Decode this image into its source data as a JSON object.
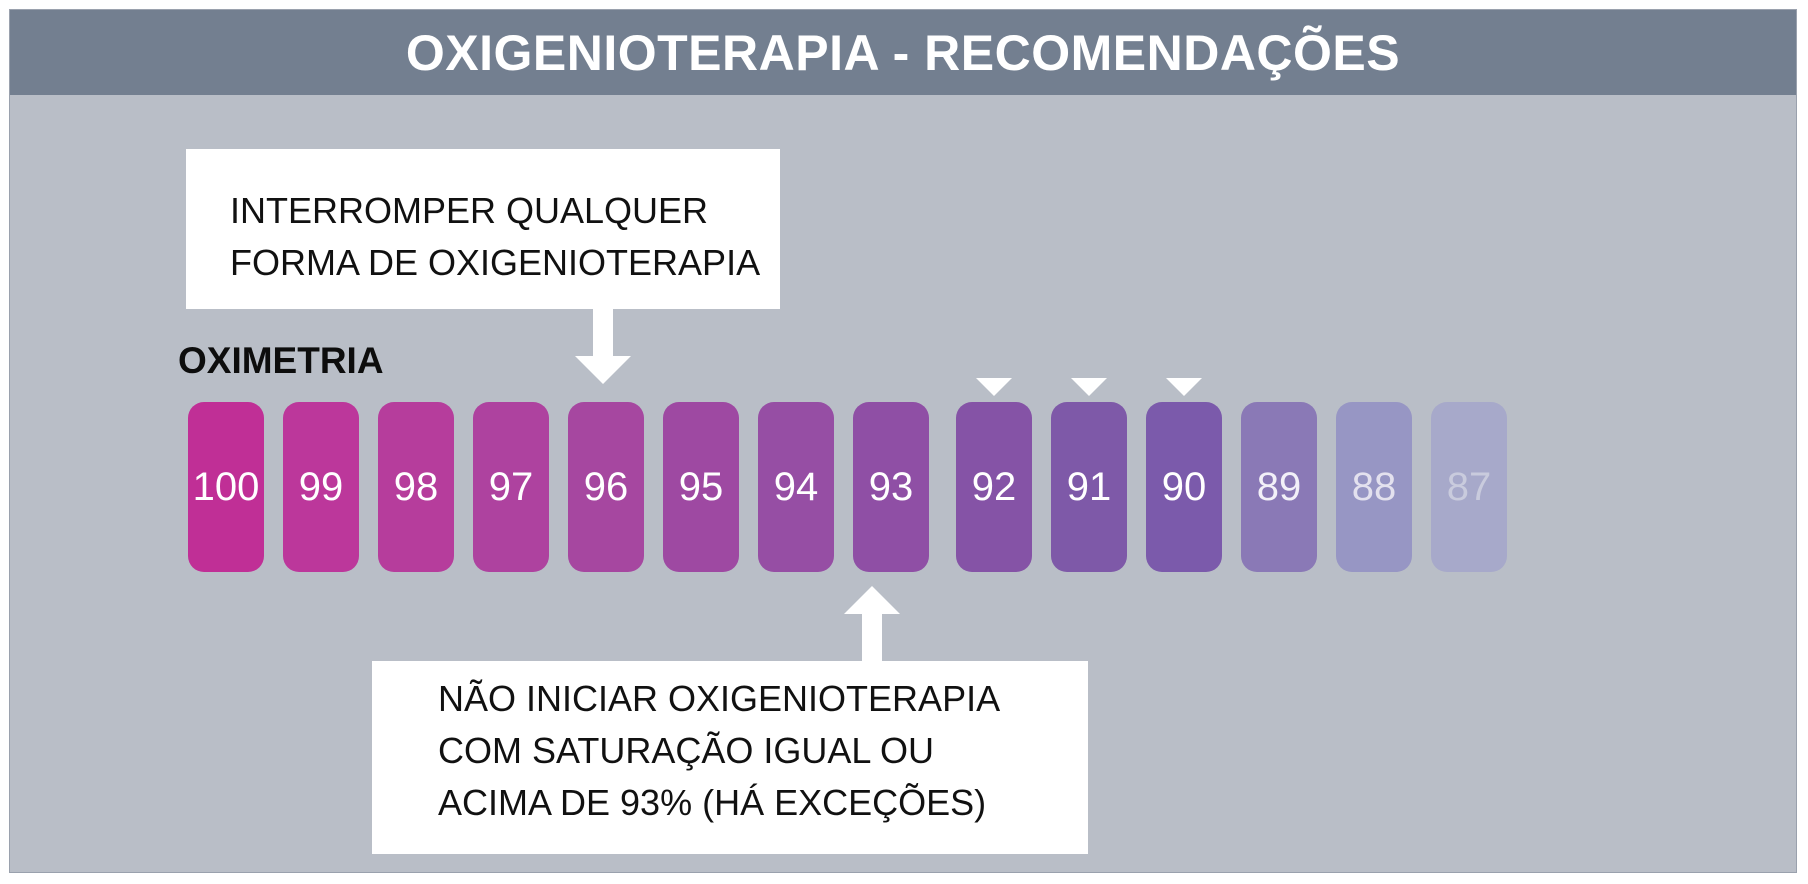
{
  "header": {
    "title": "OXIGENIOTERAPIA - RECOMENDAÇÕES"
  },
  "callout_top": {
    "lines": [
      "INTERROMPER QUALQUER",
      "FORMA DE OXIGENIOTERAPIA"
    ]
  },
  "callout_bottom": {
    "lines": [
      "NÃO INICIAR OXIGENIOTERAPIA",
      "COM SATURAÇÃO IGUAL OU",
      "ACIMA DE 93% (HÁ EXCEÇÕES)"
    ]
  },
  "scale": {
    "label": "OXIMETRIA",
    "values": [
      "100",
      "99",
      "98",
      "97",
      "96",
      "95",
      "94",
      "93",
      "92",
      "91",
      "90",
      "89",
      "88",
      "87"
    ],
    "colors": [
      "#c02f96",
      "#bc379b",
      "#b63d9c",
      "#ae429f",
      "#a647a0",
      "#9e49a2",
      "#964ea4",
      "#8f4fa5",
      "#8553a6",
      "#7e59a8",
      "#7b5aab",
      "#8a79b6",
      "#9796c4",
      "#a7a9ca"
    ],
    "text_colors": [
      "#ffffff",
      "#ffffff",
      "#ffffff",
      "#ffffff",
      "#ffffff",
      "#ffffff",
      "#ffffff",
      "#ffffff",
      "#ffffff",
      "#ffffff",
      "#ffffff",
      "#f2f0f8",
      "#e3e1ee",
      "#c9cbdd"
    ],
    "stop_oxygen_at": "96",
    "do_not_start_at": "93",
    "marked_values": [
      "92",
      "91",
      "90"
    ]
  }
}
